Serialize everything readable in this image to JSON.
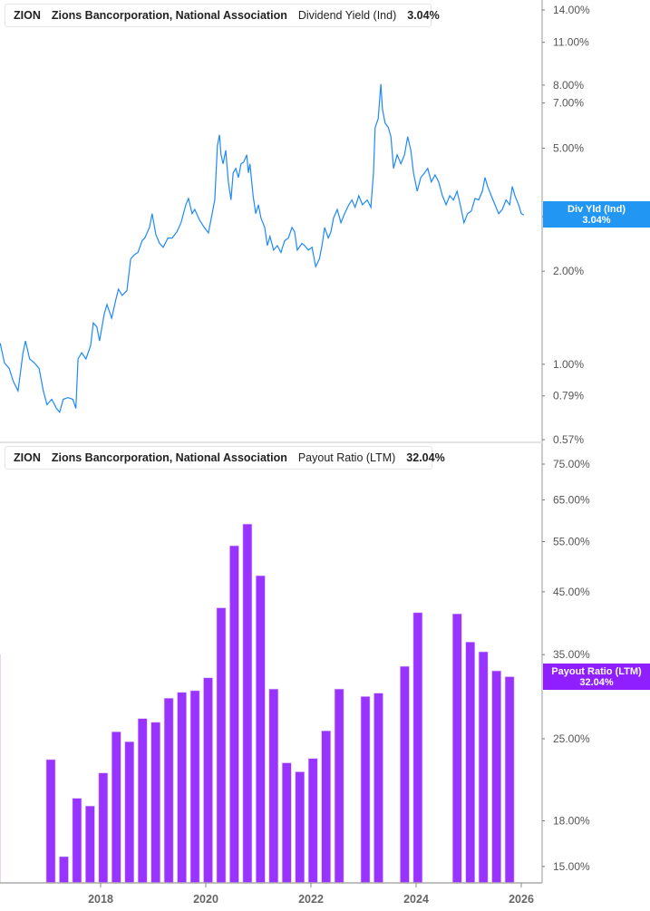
{
  "colors": {
    "yield_line": "#1e88ff",
    "payout_bar": "#9933ff",
    "yield_badge": "#2196f3",
    "payout_badge": "#8f1fff"
  },
  "top_legend": {
    "ticker": "ZION",
    "company": "Zions Bancorporation, National Association",
    "metric": "Dividend Yield (Ind)",
    "value": "3.04%"
  },
  "bottom_legend": {
    "ticker": "ZION",
    "company": "Zions Bancorporation, National Association",
    "metric": "Payout Ratio (LTM)",
    "value": "32.04%"
  },
  "yield_badge": {
    "label": "Div Yld (Ind)",
    "value": "3.04%"
  },
  "payout_badge": {
    "label": "Payout Ratio (LTM)",
    "value": "32.04%"
  },
  "x_ticks": [
    "2018",
    "2020",
    "2022",
    "2024",
    "2026"
  ],
  "chart_data": [
    {
      "type": "line",
      "series_label": "Dividend Yield (Ind)",
      "y_scale": "log",
      "ylim": [
        0.57,
        14.0
      ],
      "xlim": [
        2016.09,
        2026.4
      ],
      "y_ticks": [
        "14.00%",
        "11.00%",
        "8.00%",
        "7.00%",
        "5.00%",
        "3.00%",
        "2.00%",
        "1.00%",
        "0.79%",
        "0.57%"
      ],
      "y_tick_values": [
        14,
        11,
        8,
        7,
        5,
        3,
        2,
        1,
        0.79,
        0.57
      ],
      "points": [
        [
          2016.09,
          1.17
        ],
        [
          2016.17,
          1.01
        ],
        [
          2016.26,
          0.97
        ],
        [
          2016.34,
          0.88
        ],
        [
          2016.43,
          0.82
        ],
        [
          2016.52,
          1.08
        ],
        [
          2016.57,
          1.19
        ],
        [
          2016.65,
          1.04
        ],
        [
          2016.74,
          1.01
        ],
        [
          2016.83,
          0.97
        ],
        [
          2016.91,
          0.82
        ],
        [
          2016.98,
          0.74
        ],
        [
          2017.07,
          0.77
        ],
        [
          2017.16,
          0.72
        ],
        [
          2017.22,
          0.7
        ],
        [
          2017.29,
          0.77
        ],
        [
          2017.38,
          0.78
        ],
        [
          2017.47,
          0.77
        ],
        [
          2017.53,
          0.72
        ],
        [
          2017.57,
          1.04
        ],
        [
          2017.64,
          1.09
        ],
        [
          2017.72,
          1.04
        ],
        [
          2017.81,
          1.15
        ],
        [
          2017.86,
          1.36
        ],
        [
          2017.93,
          1.32
        ],
        [
          2017.98,
          1.19
        ],
        [
          2018.07,
          1.46
        ],
        [
          2018.12,
          1.56
        ],
        [
          2018.21,
          1.41
        ],
        [
          2018.29,
          1.62
        ],
        [
          2018.34,
          1.75
        ],
        [
          2018.41,
          1.67
        ],
        [
          2018.5,
          1.73
        ],
        [
          2018.57,
          2.19
        ],
        [
          2018.64,
          2.26
        ],
        [
          2018.71,
          2.3
        ],
        [
          2018.79,
          2.51
        ],
        [
          2018.84,
          2.56
        ],
        [
          2018.93,
          2.77
        ],
        [
          2018.98,
          3.07
        ],
        [
          2019.05,
          2.63
        ],
        [
          2019.12,
          2.46
        ],
        [
          2019.19,
          2.39
        ],
        [
          2019.28,
          2.56
        ],
        [
          2019.36,
          2.56
        ],
        [
          2019.45,
          2.68
        ],
        [
          2019.53,
          2.87
        ],
        [
          2019.62,
          3.28
        ],
        [
          2019.67,
          3.44
        ],
        [
          2019.74,
          3.07
        ],
        [
          2019.79,
          3.17
        ],
        [
          2019.88,
          2.93
        ],
        [
          2019.97,
          2.77
        ],
        [
          2020.05,
          2.66
        ],
        [
          2020.12,
          3.07
        ],
        [
          2020.17,
          3.4
        ],
        [
          2020.22,
          5.09
        ],
        [
          2020.26,
          5.52
        ],
        [
          2020.29,
          4.76
        ],
        [
          2020.33,
          4.45
        ],
        [
          2020.38,
          4.92
        ],
        [
          2020.43,
          3.89
        ],
        [
          2020.48,
          3.4
        ],
        [
          2020.52,
          4.16
        ],
        [
          2020.57,
          4.3
        ],
        [
          2020.62,
          4.02
        ],
        [
          2020.67,
          4.45
        ],
        [
          2020.72,
          4.51
        ],
        [
          2020.78,
          4.76
        ],
        [
          2020.81,
          4.16
        ],
        [
          2020.84,
          4.45
        ],
        [
          2020.9,
          3.51
        ],
        [
          2020.95,
          3.07
        ],
        [
          2021.0,
          3.28
        ],
        [
          2021.05,
          2.97
        ],
        [
          2021.12,
          2.77
        ],
        [
          2021.17,
          2.42
        ],
        [
          2021.22,
          2.59
        ],
        [
          2021.29,
          2.34
        ],
        [
          2021.36,
          2.42
        ],
        [
          2021.43,
          2.3
        ],
        [
          2021.5,
          2.51
        ],
        [
          2021.57,
          2.56
        ],
        [
          2021.64,
          2.77
        ],
        [
          2021.69,
          2.68
        ],
        [
          2021.74,
          2.34
        ],
        [
          2021.83,
          2.46
        ],
        [
          2021.88,
          2.42
        ],
        [
          2021.95,
          2.34
        ],
        [
          2022.02,
          2.39
        ],
        [
          2022.09,
          2.07
        ],
        [
          2022.16,
          2.19
        ],
        [
          2022.21,
          2.42
        ],
        [
          2022.26,
          2.77
        ],
        [
          2022.33,
          2.56
        ],
        [
          2022.38,
          2.68
        ],
        [
          2022.43,
          2.97
        ],
        [
          2022.5,
          3.17
        ],
        [
          2022.57,
          2.87
        ],
        [
          2022.64,
          3.07
        ],
        [
          2022.72,
          3.28
        ],
        [
          2022.78,
          3.4
        ],
        [
          2022.84,
          3.22
        ],
        [
          2022.91,
          3.51
        ],
        [
          2022.98,
          3.28
        ],
        [
          2023.07,
          3.4
        ],
        [
          2023.14,
          3.22
        ],
        [
          2023.19,
          4.16
        ],
        [
          2023.22,
          5.83
        ],
        [
          2023.28,
          6.23
        ],
        [
          2023.33,
          8.06
        ],
        [
          2023.36,
          6.67
        ],
        [
          2023.41,
          6.03
        ],
        [
          2023.47,
          5.83
        ],
        [
          2023.52,
          5.45
        ],
        [
          2023.57,
          4.3
        ],
        [
          2023.64,
          4.76
        ],
        [
          2023.71,
          4.45
        ],
        [
          2023.78,
          4.76
        ],
        [
          2023.84,
          5.45
        ],
        [
          2023.9,
          4.92
        ],
        [
          2023.95,
          4.16
        ],
        [
          2024.02,
          3.63
        ],
        [
          2024.09,
          4.02
        ],
        [
          2024.16,
          4.16
        ],
        [
          2024.22,
          4.3
        ],
        [
          2024.29,
          3.89
        ],
        [
          2024.36,
          4.1
        ],
        [
          2024.43,
          3.89
        ],
        [
          2024.5,
          3.51
        ],
        [
          2024.57,
          3.28
        ],
        [
          2024.64,
          3.51
        ],
        [
          2024.71,
          3.4
        ],
        [
          2024.78,
          3.63
        ],
        [
          2024.84,
          3.28
        ],
        [
          2024.91,
          2.87
        ],
        [
          2024.98,
          3.07
        ],
        [
          2025.05,
          3.13
        ],
        [
          2025.12,
          3.44
        ],
        [
          2025.19,
          3.4
        ],
        [
          2025.26,
          3.63
        ],
        [
          2025.31,
          4.02
        ],
        [
          2025.36,
          3.76
        ],
        [
          2025.43,
          3.51
        ],
        [
          2025.5,
          3.28
        ],
        [
          2025.57,
          3.07
        ],
        [
          2025.64,
          3.17
        ],
        [
          2025.71,
          3.4
        ],
        [
          2025.78,
          3.28
        ],
        [
          2025.83,
          3.76
        ],
        [
          2025.88,
          3.51
        ],
        [
          2025.95,
          3.28
        ],
        [
          2026.0,
          3.07
        ],
        [
          2026.05,
          3.04
        ]
      ]
    },
    {
      "type": "bar",
      "series_label": "Payout Ratio (LTM)",
      "y_scale": "log",
      "ylim": [
        14.2,
        75.0
      ],
      "y_ticks": [
        "75.00%",
        "65.00%",
        "55.00%",
        "45.00%",
        "35.00%",
        "25.00%",
        "18.00%",
        "15.00%"
      ],
      "y_tick_values": [
        75,
        65,
        55,
        45,
        35,
        25,
        18,
        15
      ],
      "categories": [
        "2016-12-31",
        "2017-03-31",
        "2017-06-30",
        "2017-09-30",
        "2017-12-31",
        "2018-03-31",
        "2018-06-30",
        "2018-09-30",
        "2018-12-31",
        "2019-03-31",
        "2019-06-30",
        "2019-09-30",
        "2019-12-31",
        "2020-03-31",
        "2020-06-30",
        "2020-09-30",
        "2020-12-31",
        "2021-03-31",
        "2021-06-30",
        "2021-09-30",
        "2021-12-31",
        "2022-03-31",
        "2022-06-30",
        "2022-09-30",
        "2022-12-31",
        "2023-03-31",
        "2023-06-30",
        "2023-09-30",
        "2023-12-31",
        "2024-03-31",
        "2024-06-30",
        "2024-09-30",
        "2024-12-31",
        "2025-03-31",
        "2025-06-30",
        "2025-09-30"
      ],
      "values": [
        23.0,
        15.6,
        19.7,
        19.1,
        21.8,
        25.7,
        24.7,
        27.1,
        26.7,
        29.4,
        30.1,
        30.3,
        31.9,
        42.2,
        54.1,
        59.0,
        48.0,
        30.5,
        22.7,
        21.9,
        23.1,
        25.8,
        30.5,
        null,
        29.6,
        30.0,
        null,
        33.4,
        41.4,
        null,
        null,
        41.2,
        36.8,
        35.4,
        32.8,
        32.04
      ]
    }
  ]
}
